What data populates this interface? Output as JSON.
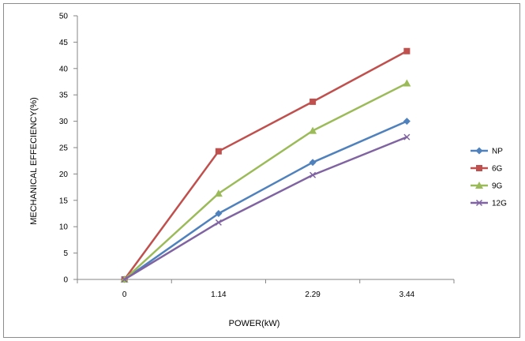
{
  "chart_data": {
    "type": "line",
    "categories": [
      "0",
      "1.14",
      "2.29",
      "3.44"
    ],
    "xlabel": "POWER(kW)",
    "ylabel": "MECHANICAL EFFECIENCY(%)",
    "ylim": [
      0,
      50
    ],
    "yticks": [
      0,
      5,
      10,
      15,
      20,
      25,
      30,
      35,
      40,
      45,
      50
    ],
    "grid": false,
    "legend_position": "right",
    "series": [
      {
        "name": "NP",
        "color": "#4f81bd",
        "marker": "diamond",
        "values": [
          0,
          12.5,
          22.2,
          30.0
        ]
      },
      {
        "name": "6G",
        "color": "#c0504d",
        "marker": "square",
        "values": [
          0,
          24.3,
          33.7,
          43.3
        ]
      },
      {
        "name": "9G",
        "color": "#9bbb59",
        "marker": "triangle",
        "values": [
          0,
          16.3,
          28.2,
          37.2
        ]
      },
      {
        "name": "12G",
        "color": "#8064a2",
        "marker": "x",
        "values": [
          0,
          10.8,
          19.8,
          27.0
        ]
      }
    ]
  }
}
